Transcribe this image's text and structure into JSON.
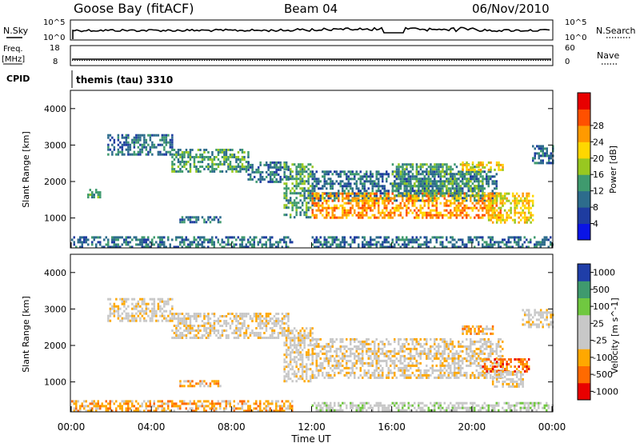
{
  "header": {
    "station": "Goose Bay (fitACF)",
    "beam": "Beam 04",
    "date": "06/Nov/2010"
  },
  "nsky_panel": {
    "left_label": "N.Sky",
    "right_label": "N.Search",
    "left_ticks": [
      "10^5",
      "10^0"
    ],
    "right_ticks": [
      "10^5",
      "10^0"
    ]
  },
  "freq_panel": {
    "left_label_1": "Freq.",
    "left_label_2": "[MHz]",
    "right_label": "Nave",
    "left_ticks": [
      "18",
      "8"
    ],
    "right_ticks": [
      "60",
      "0"
    ]
  },
  "cpid_panel": {
    "label": "CPID",
    "text": "themis (tau) 3310"
  },
  "colors": {
    "power": [
      "#0a14e6",
      "#1e3ca0",
      "#2d6c8c",
      "#3f9a6e",
      "#98c820",
      "#ffd700",
      "#ff9a00",
      "#ff5000",
      "#e80000"
    ],
    "velocity": [
      "#e80000",
      "#ff6a00",
      "#ffa800",
      "#c8c8c8",
      "#c8c8c8",
      "#70c840",
      "#3f9a6e",
      "#1f3ea8"
    ],
    "ground_scatter": "#c8c8c8"
  },
  "chart_data": [
    {
      "type": "heatmap",
      "quantity": "Power",
      "xlabel": "",
      "ylabel": "Slant Range [km]",
      "colorbar_label": "Power [dB]",
      "colorbar_ticks": [
        "4",
        "8",
        "12",
        "16",
        "20",
        "24",
        "28"
      ],
      "ylim": [
        180,
        4500
      ],
      "yticks": [
        "1000",
        "2000",
        "3000",
        "4000"
      ],
      "xlim": [
        "00:00",
        "24:00"
      ],
      "regions": [
        {
          "t": [
            1.8,
            5.0
          ],
          "r": [
            2750,
            3300
          ],
          "level": 2
        },
        {
          "t": [
            5.0,
            8.8
          ],
          "r": [
            2300,
            2900
          ],
          "level": 3
        },
        {
          "t": [
            8.8,
            10.8
          ],
          "r": [
            2000,
            2550
          ],
          "level": 2
        },
        {
          "t": [
            5.4,
            7.4
          ],
          "r": [
            880,
            1050
          ],
          "level": 2
        },
        {
          "t": [
            0.0,
            11.0
          ],
          "r": [
            200,
            500
          ],
          "level": 2
        },
        {
          "t": [
            0.8,
            1.4
          ],
          "r": [
            1550,
            1800
          ],
          "level": 3
        },
        {
          "t": [
            10.6,
            12.0
          ],
          "r": [
            1000,
            2500
          ],
          "level": 3
        },
        {
          "t": [
            12.0,
            21.2
          ],
          "r": [
            1500,
            2300
          ],
          "level": 2
        },
        {
          "t": [
            12.0,
            21.5
          ],
          "r": [
            1000,
            1700
          ],
          "level": 6
        },
        {
          "t": [
            16.0,
            20.5
          ],
          "r": [
            1600,
            2500
          ],
          "level": 3
        },
        {
          "t": [
            20.8,
            23.0
          ],
          "r": [
            850,
            1700
          ],
          "level": 5
        },
        {
          "t": [
            19.5,
            21.5
          ],
          "r": [
            2300,
            2550
          ],
          "level": 5
        },
        {
          "t": [
            23.0,
            24.0
          ],
          "r": [
            2500,
            3000
          ],
          "level": 2
        },
        {
          "t": [
            12.0,
            24.0
          ],
          "r": [
            200,
            500
          ],
          "level": 2
        }
      ]
    },
    {
      "type": "heatmap",
      "quantity": "Velocity",
      "xlabel": "Time UT",
      "ylabel": "Slant Range [km]",
      "colorbar_label": "Velocity [m s^-1]",
      "colorbar_ticks": [
        "1000",
        "500",
        "100",
        "25",
        "-25",
        "-100",
        "-500",
        "-1000"
      ],
      "ylim": [
        180,
        4500
      ],
      "yticks": [
        "1000",
        "2000",
        "3000",
        "4000"
      ],
      "xlim": [
        "00:00",
        "24:00"
      ],
      "xticks": [
        "00:00",
        "04:00",
        "08:00",
        "12:00",
        "16:00",
        "20:00",
        "00:00"
      ],
      "regions": [
        {
          "t": [
            1.8,
            5.0
          ],
          "r": [
            2700,
            3300
          ],
          "level": 3
        },
        {
          "t": [
            5.0,
            10.8
          ],
          "r": [
            2200,
            2900
          ],
          "level": 3
        },
        {
          "t": [
            5.4,
            7.4
          ],
          "r": [
            880,
            1050
          ],
          "level": 2
        },
        {
          "t": [
            0.0,
            11.0
          ],
          "r": [
            200,
            500
          ],
          "level": 2
        },
        {
          "t": [
            10.6,
            12.0
          ],
          "r": [
            1000,
            2500
          ],
          "level": 3
        },
        {
          "t": [
            12.0,
            21.5
          ],
          "r": [
            1100,
            2200
          ],
          "level": 3
        },
        {
          "t": [
            20.5,
            22.8
          ],
          "r": [
            1300,
            1650
          ],
          "level": 1
        },
        {
          "t": [
            19.5,
            21.0
          ],
          "r": [
            2350,
            2550
          ],
          "level": 2
        },
        {
          "t": [
            21.0,
            22.5
          ],
          "r": [
            900,
            1300
          ],
          "level": 3
        },
        {
          "t": [
            22.5,
            24.0
          ],
          "r": [
            2500,
            3000
          ],
          "level": 3
        },
        {
          "t": [
            12.0,
            24.0
          ],
          "r": [
            200,
            450
          ],
          "level": 4
        }
      ]
    }
  ]
}
